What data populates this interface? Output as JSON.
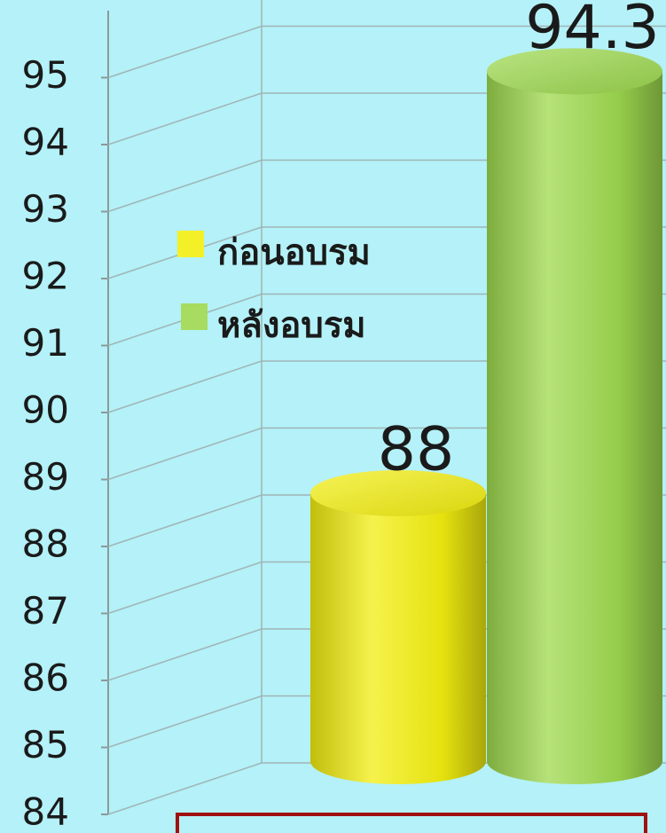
{
  "chart_data": {
    "type": "bar3d",
    "categories": [
      null
    ],
    "series": [
      {
        "name": "ก่อนอบรม",
        "color": "#f2ee10",
        "values": [
          88
        ]
      },
      {
        "name": "หลังอบรม",
        "color": "#9dd84e",
        "values": [
          94.3
        ]
      }
    ],
    "ylim": [
      84,
      96
    ],
    "yticks": [
      84,
      85,
      86,
      87,
      88,
      89,
      90,
      91,
      92,
      93,
      94,
      95
    ],
    "grid": true
  }
}
